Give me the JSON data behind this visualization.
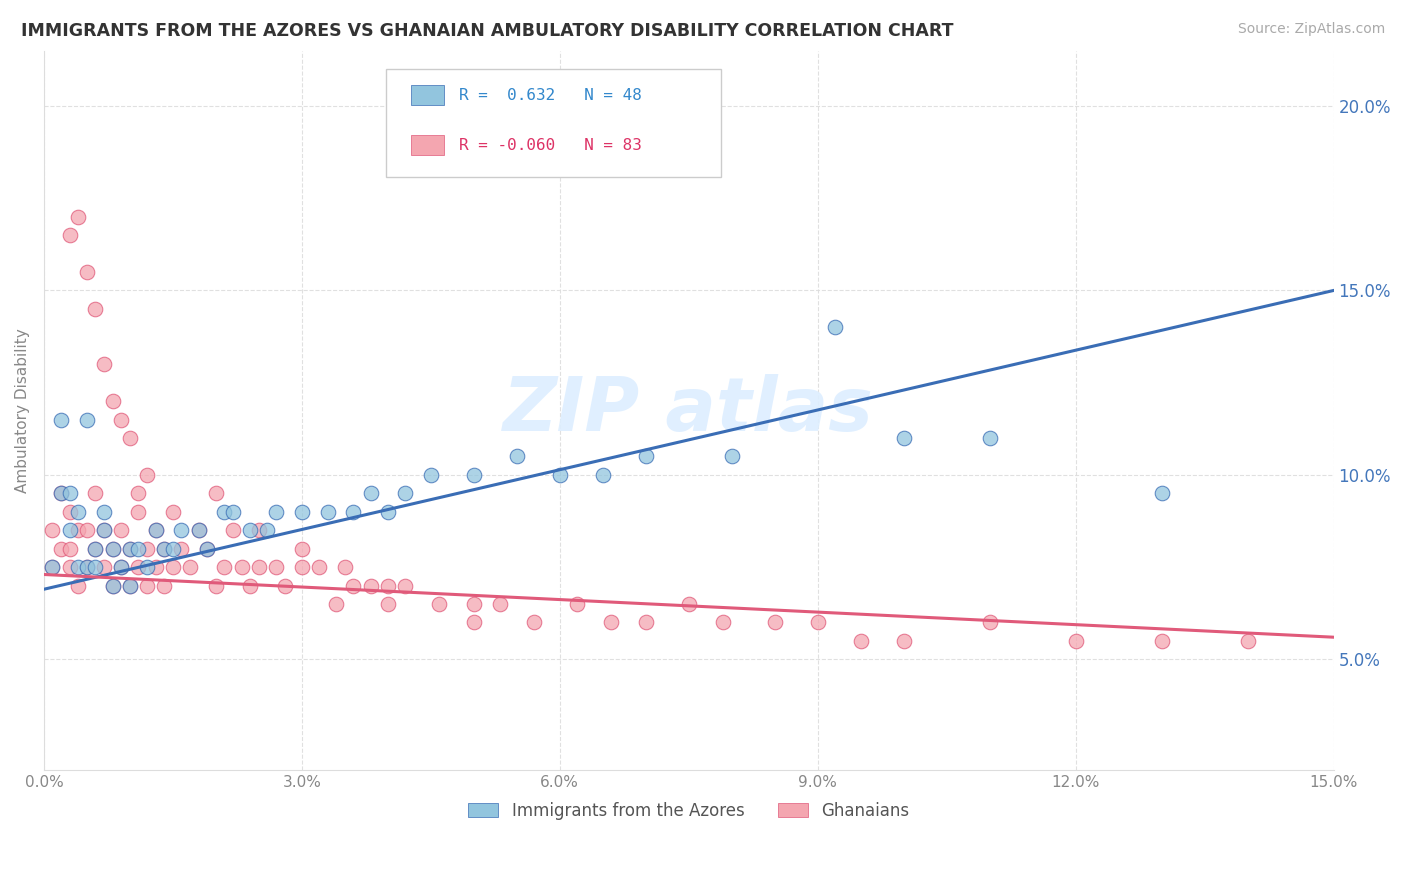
{
  "title": "IMMIGRANTS FROM THE AZORES VS GHANAIAN AMBULATORY DISABILITY CORRELATION CHART",
  "source": "Source: ZipAtlas.com",
  "ylabel": "Ambulatory Disability",
  "xlim": [
    0.0,
    0.15
  ],
  "ylim": [
    0.02,
    0.215
  ],
  "xticks": [
    0.0,
    0.03,
    0.06,
    0.09,
    0.12,
    0.15
  ],
  "yticks": [
    0.05,
    0.1,
    0.15,
    0.2
  ],
  "xticklabels": [
    "0.0%",
    "3.0%",
    "6.0%",
    "9.0%",
    "12.0%",
    "15.0%"
  ],
  "yticklabels": [
    "5.0%",
    "10.0%",
    "15.0%",
    "20.0%"
  ],
  "legend1_label": "Immigrants from the Azores",
  "legend2_label": "Ghanaians",
  "r1": 0.632,
  "n1": 48,
  "r2": -0.06,
  "n2": 83,
  "blue_color": "#92c5de",
  "pink_color": "#f4a6b0",
  "blue_line_color": "#3a6db5",
  "pink_line_color": "#e05a7a",
  "blue_line_start_y": 0.069,
  "blue_line_end_y": 0.15,
  "pink_line_start_y": 0.073,
  "pink_line_end_y": 0.056,
  "blue_scatter_x": [
    0.001,
    0.002,
    0.002,
    0.003,
    0.003,
    0.004,
    0.004,
    0.005,
    0.005,
    0.006,
    0.006,
    0.007,
    0.007,
    0.008,
    0.008,
    0.009,
    0.01,
    0.01,
    0.011,
    0.012,
    0.013,
    0.014,
    0.015,
    0.016,
    0.018,
    0.019,
    0.021,
    0.022,
    0.024,
    0.026,
    0.027,
    0.03,
    0.033,
    0.036,
    0.038,
    0.04,
    0.042,
    0.045,
    0.05,
    0.055,
    0.06,
    0.065,
    0.07,
    0.08,
    0.092,
    0.1,
    0.11,
    0.13
  ],
  "blue_scatter_y": [
    0.075,
    0.095,
    0.115,
    0.085,
    0.095,
    0.075,
    0.09,
    0.075,
    0.115,
    0.08,
    0.075,
    0.085,
    0.09,
    0.07,
    0.08,
    0.075,
    0.08,
    0.07,
    0.08,
    0.075,
    0.085,
    0.08,
    0.08,
    0.085,
    0.085,
    0.08,
    0.09,
    0.09,
    0.085,
    0.085,
    0.09,
    0.09,
    0.09,
    0.09,
    0.095,
    0.09,
    0.095,
    0.1,
    0.1,
    0.105,
    0.1,
    0.1,
    0.105,
    0.105,
    0.14,
    0.11,
    0.11,
    0.095
  ],
  "pink_scatter_x": [
    0.001,
    0.001,
    0.002,
    0.002,
    0.003,
    0.003,
    0.003,
    0.004,
    0.004,
    0.005,
    0.005,
    0.006,
    0.006,
    0.007,
    0.007,
    0.008,
    0.008,
    0.009,
    0.009,
    0.01,
    0.01,
    0.011,
    0.011,
    0.012,
    0.012,
    0.013,
    0.013,
    0.014,
    0.014,
    0.015,
    0.016,
    0.017,
    0.018,
    0.019,
    0.02,
    0.021,
    0.022,
    0.023,
    0.024,
    0.025,
    0.027,
    0.028,
    0.03,
    0.032,
    0.034,
    0.036,
    0.038,
    0.04,
    0.042,
    0.046,
    0.05,
    0.053,
    0.057,
    0.062,
    0.066,
    0.07,
    0.075,
    0.079,
    0.085,
    0.09,
    0.095,
    0.1,
    0.11,
    0.12,
    0.13,
    0.14,
    0.003,
    0.004,
    0.005,
    0.006,
    0.007,
    0.008,
    0.009,
    0.01,
    0.011,
    0.012,
    0.015,
    0.02,
    0.025,
    0.03,
    0.035,
    0.04,
    0.05
  ],
  "pink_scatter_y": [
    0.075,
    0.085,
    0.08,
    0.095,
    0.08,
    0.075,
    0.09,
    0.085,
    0.07,
    0.085,
    0.075,
    0.08,
    0.095,
    0.075,
    0.085,
    0.07,
    0.08,
    0.075,
    0.085,
    0.08,
    0.07,
    0.075,
    0.09,
    0.08,
    0.07,
    0.075,
    0.085,
    0.08,
    0.07,
    0.075,
    0.08,
    0.075,
    0.085,
    0.08,
    0.07,
    0.075,
    0.085,
    0.075,
    0.07,
    0.075,
    0.075,
    0.07,
    0.075,
    0.075,
    0.065,
    0.07,
    0.07,
    0.065,
    0.07,
    0.065,
    0.06,
    0.065,
    0.06,
    0.065,
    0.06,
    0.06,
    0.065,
    0.06,
    0.06,
    0.06,
    0.055,
    0.055,
    0.06,
    0.055,
    0.055,
    0.055,
    0.165,
    0.17,
    0.155,
    0.145,
    0.13,
    0.12,
    0.115,
    0.11,
    0.095,
    0.1,
    0.09,
    0.095,
    0.085,
    0.08,
    0.075,
    0.07,
    0.065
  ]
}
